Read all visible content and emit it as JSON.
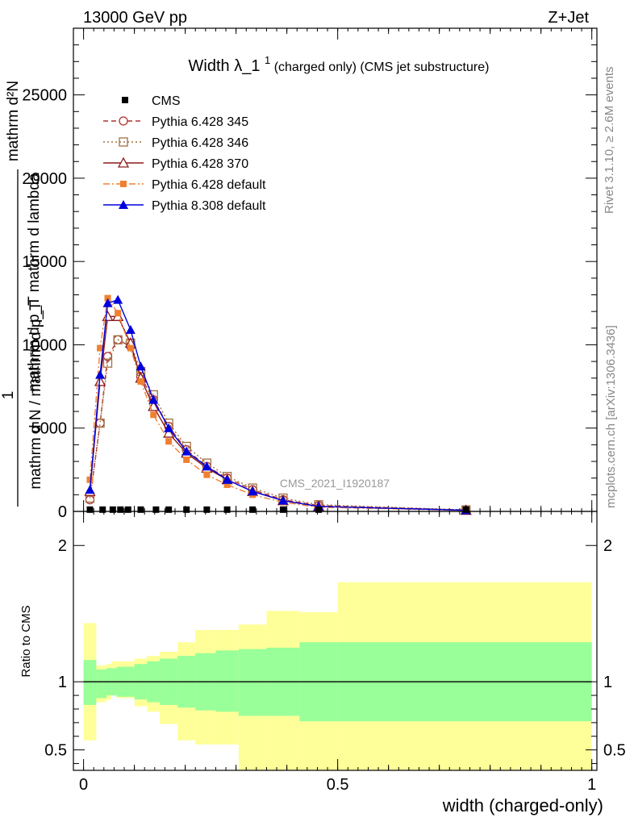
{
  "header": {
    "left": "13000 GeV pp",
    "right": "Z+Jet"
  },
  "side_labels": {
    "rivet": "Rivet 3.1.10, ≥ 2.6M events",
    "mcplots": "mcplots.cern.ch [arXiv:1306.3436]"
  },
  "chart_data": [
    {
      "type": "line",
      "title_main": "Width λ_1",
      "title_sup": "1",
      "title_rest": "(charged only) (CMS jet substructure)",
      "ylabel_lines": [
        "mathrm d²N",
        "mathrm d p_T mathrm d lambda",
        "1",
        "mathrm d N / mathrm d p_T"
      ],
      "xlabel": "",
      "ylim": [
        0,
        29000
      ],
      "xlim": [
        -0.02,
        1.01
      ],
      "yticks": [
        0,
        5000,
        10000,
        15000,
        20000,
        25000
      ],
      "ytick_labels": [
        "0",
        "5000",
        "10000",
        "15000",
        "20000",
        "25000"
      ],
      "watermark": "CMS_2021_I1920187",
      "cms": {
        "name": "CMS",
        "x": [
          0.0125,
          0.0375,
          0.0575,
          0.0725,
          0.0875,
          0.1125,
          0.1425,
          0.1675,
          0.2025,
          0.2425,
          0.2825,
          0.3325,
          0.3925,
          0.4625,
          0.7525
        ],
        "y": [
          10,
          10,
          10,
          10,
          10,
          10,
          10,
          10,
          10,
          10,
          10,
          10,
          10,
          10,
          10
        ]
      },
      "series": [
        {
          "name": "Pythia 6.428 345",
          "color": "#b03030",
          "dash": "6,4",
          "marker": "circle-open",
          "x": [
            0.0125,
            0.0325,
            0.0475,
            0.0675,
            0.0925,
            0.1125,
            0.1375,
            0.1675,
            0.2025,
            0.2425,
            0.2825,
            0.3325,
            0.3925,
            0.4625,
            0.7525
          ],
          "y": [
            700,
            5300,
            9300,
            10300,
            9900,
            8100,
            6700,
            5100,
            3700,
            2700,
            2000,
            1300,
            700,
            350,
            80
          ]
        },
        {
          "name": "Pythia 6.428 346",
          "color": "#a07040",
          "dash": "2,3",
          "marker": "square-open",
          "x": [
            0.0125,
            0.0325,
            0.0475,
            0.0675,
            0.0925,
            0.1125,
            0.1375,
            0.1675,
            0.2025,
            0.2425,
            0.2825,
            0.3325,
            0.3925,
            0.4625,
            0.7525
          ],
          "y": [
            800,
            5300,
            8900,
            10300,
            10100,
            8400,
            7000,
            5300,
            3900,
            2900,
            2100,
            1400,
            800,
            400,
            90
          ]
        },
        {
          "name": "Pythia 6.428 370",
          "color": "#8b1a1a",
          "dash": "",
          "marker": "triangle-open",
          "x": [
            0.0125,
            0.0325,
            0.0475,
            0.0675,
            0.0925,
            0.1125,
            0.1375,
            0.1675,
            0.2025,
            0.2425,
            0.2825,
            0.3325,
            0.3925,
            0.4625,
            0.7525
          ],
          "y": [
            1200,
            7800,
            11700,
            11700,
            10100,
            8000,
            6300,
            4700,
            3500,
            2600,
            1900,
            1200,
            650,
            300,
            70
          ]
        },
        {
          "name": "Pythia 6.428 default",
          "color": "#f08030",
          "dash": "8,3,2,3",
          "marker": "square-filled",
          "x": [
            0.0125,
            0.0325,
            0.0475,
            0.0675,
            0.0925,
            0.1125,
            0.1375,
            0.1675,
            0.2025,
            0.2425,
            0.2825,
            0.3325,
            0.3925,
            0.4625,
            0.7525
          ],
          "y": [
            1900,
            9800,
            12800,
            11900,
            9800,
            7800,
            5800,
            4200,
            3100,
            2200,
            1600,
            1000,
            550,
            250,
            60
          ]
        },
        {
          "name": "Pythia 8.308 default",
          "color": "#0000dd",
          "dash": "",
          "marker": "triangle-filled",
          "x": [
            0.0125,
            0.0325,
            0.0475,
            0.0675,
            0.0925,
            0.1125,
            0.1375,
            0.1675,
            0.2025,
            0.2425,
            0.2825,
            0.3325,
            0.3925,
            0.4625,
            0.7525
          ],
          "y": [
            1300,
            8200,
            12500,
            12700,
            10900,
            8700,
            6700,
            5000,
            3600,
            2700,
            1900,
            1200,
            650,
            300,
            70
          ]
        }
      ]
    },
    {
      "type": "area",
      "ylabel": "Ratio to CMS",
      "xlabel": "width (charged-only)",
      "xlim": [
        -0.02,
        1.01
      ],
      "ylim": [
        0.35,
        2.25
      ],
      "yticks": [
        0.5,
        1,
        2
      ],
      "ytick_labels": [
        "0.5",
        "1",
        "2"
      ],
      "xticks": [
        0,
        0.5,
        1
      ],
      "xtick_labels": [
        "0",
        "0.5",
        "1"
      ],
      "bin_edges": [
        0.0,
        0.025,
        0.045,
        0.055,
        0.065,
        0.1,
        0.125,
        0.15,
        0.185,
        0.22,
        0.26,
        0.305,
        0.36,
        0.425,
        0.5,
        1.0
      ],
      "green_lo": [
        0.83,
        0.88,
        0.9,
        0.9,
        0.89,
        0.87,
        0.85,
        0.83,
        0.81,
        0.79,
        0.78,
        0.75,
        0.75,
        0.71,
        0.71
      ],
      "green_hi": [
        1.16,
        1.09,
        1.1,
        1.1,
        1.11,
        1.13,
        1.15,
        1.17,
        1.19,
        1.21,
        1.23,
        1.24,
        1.25,
        1.29,
        1.29
      ],
      "yellow_lo": [
        0.57,
        0.85,
        0.87,
        0.9,
        0.88,
        0.82,
        0.78,
        0.69,
        0.57,
        0.54,
        0.54,
        0.35,
        0.35,
        0.35,
        0.35
      ],
      "yellow_hi": [
        1.43,
        1.12,
        1.13,
        1.15,
        1.15,
        1.17,
        1.19,
        1.22,
        1.29,
        1.38,
        1.38,
        1.42,
        1.52,
        1.51,
        1.73
      ],
      "ref_line": 1
    }
  ]
}
